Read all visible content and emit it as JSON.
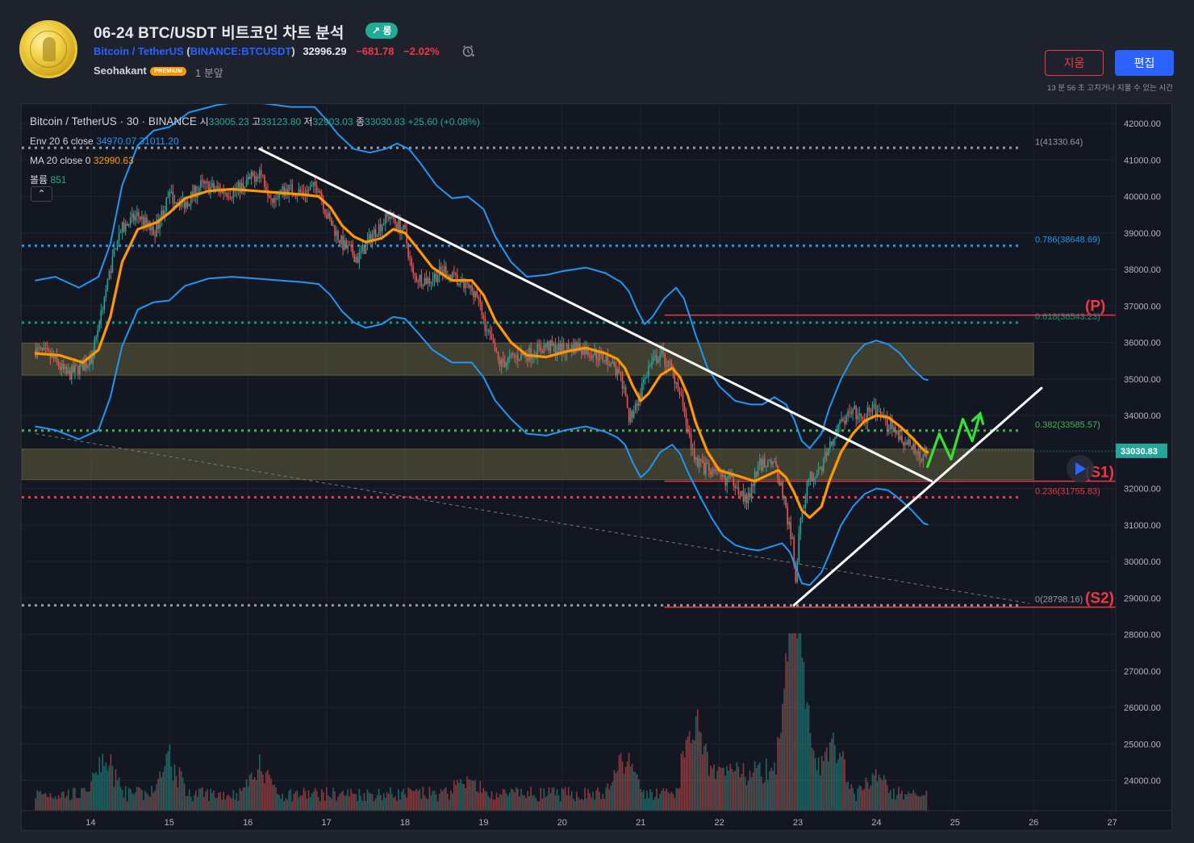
{
  "header": {
    "title": "06-24 BTC/USDT 비트코인 차트 분석",
    "badge": "↗ 롱",
    "symbol_name": "Bitcoin / TetherUS",
    "exchange_ticker": "BINANCE:BTCUSDT",
    "open_paren": "(",
    "close_paren": ")",
    "price": "32996.29",
    "change": "−681.78",
    "change_pct": "−2.02%",
    "author": "Seohakant",
    "author_badge": "PREMIUM",
    "time_ago": "1 분앞",
    "delete_label": "지움",
    "edit_label": "편집",
    "edit_note": "13 분 56 초 고치거나 지울 수 있는 시간"
  },
  "legend": {
    "symbol": "Bitcoin / TetherUS",
    "interval": "30",
    "exchange": "BINANCE",
    "open_label": "시",
    "open": "33005.23",
    "high_label": "고",
    "high": "33123.80",
    "low_label": "저",
    "low": "32903.03",
    "close_label": "종",
    "close": "33030.83",
    "change": "+25.60 (+0.08%)",
    "env_label": "Env 20 6 close",
    "env_upper": "34970.07",
    "env_lower": "31011.20",
    "ma_label": "MA 20 close 0",
    "ma_value": "32990.63",
    "vol_label": "볼륨",
    "vol_value": "851",
    "collapse": "⌃"
  },
  "colors": {
    "background": "#131722",
    "grid": "#1f2330",
    "up": "#26a69a",
    "down": "#ef5350",
    "env": "#2196f3",
    "ma": "#ff9800",
    "trendline": "#ffffff",
    "projection": "#36e230",
    "zone": "#5c5a3a",
    "level_red": "#f23645"
  },
  "chart_data": {
    "type": "candlestick",
    "symbol": "BTCUSDT",
    "interval": "30",
    "x_ticks": [
      "14",
      "15",
      "16",
      "17",
      "18",
      "19",
      "20",
      "21",
      "22",
      "23",
      "24",
      "25",
      "26",
      "27"
    ],
    "y_ticks": [
      "42000.00",
      "41000.00",
      "40000.00",
      "39000.00",
      "38000.00",
      "37000.00",
      "36000.00",
      "35000.00",
      "34000.00",
      "33000.00",
      "32000.00",
      "31000.00",
      "30000.00",
      "29000.00",
      "28000.00",
      "27000.00",
      "26000.00",
      "25000.00",
      "24000.00"
    ],
    "ylim": [
      23250,
      42350
    ],
    "last_price": "33030.83",
    "close_path": [
      [
        13.3,
        35800
      ],
      [
        13.5,
        35600
      ],
      [
        13.7,
        35100
      ],
      [
        14.0,
        35500
      ],
      [
        14.2,
        37500
      ],
      [
        14.35,
        39000
      ],
      [
        14.6,
        39500
      ],
      [
        14.8,
        39000
      ],
      [
        15.0,
        40000
      ],
      [
        15.2,
        39800
      ],
      [
        15.4,
        40300
      ],
      [
        15.6,
        40200
      ],
      [
        15.8,
        40100
      ],
      [
        16.0,
        40400
      ],
      [
        16.15,
        40700
      ],
      [
        16.3,
        40000
      ],
      [
        16.5,
        40200
      ],
      [
        16.7,
        40100
      ],
      [
        16.9,
        40300
      ],
      [
        17.0,
        39500
      ],
      [
        17.2,
        38700
      ],
      [
        17.4,
        38300
      ],
      [
        17.6,
        39000
      ],
      [
        17.8,
        39500
      ],
      [
        18.0,
        39000
      ],
      [
        18.1,
        37800
      ],
      [
        18.3,
        37700
      ],
      [
        18.5,
        38000
      ],
      [
        18.7,
        37600
      ],
      [
        18.9,
        37400
      ],
      [
        19.0,
        36600
      ],
      [
        19.2,
        35400
      ],
      [
        19.4,
        35600
      ],
      [
        19.6,
        35700
      ],
      [
        19.8,
        35900
      ],
      [
        20.0,
        35800
      ],
      [
        20.2,
        35900
      ],
      [
        20.4,
        35700
      ],
      [
        20.6,
        35500
      ],
      [
        20.75,
        35000
      ],
      [
        20.85,
        33900
      ],
      [
        21.0,
        34600
      ],
      [
        21.1,
        35300
      ],
      [
        21.25,
        35700
      ],
      [
        21.4,
        35200
      ],
      [
        21.5,
        34700
      ],
      [
        21.6,
        33500
      ],
      [
        21.7,
        32800
      ],
      [
        21.85,
        32500
      ],
      [
        22.0,
        32300
      ],
      [
        22.2,
        32200
      ],
      [
        22.35,
        31600
      ],
      [
        22.5,
        32600
      ],
      [
        22.65,
        32800
      ],
      [
        22.75,
        32400
      ],
      [
        22.85,
        31400
      ],
      [
        22.93,
        30500
      ],
      [
        22.97,
        29400
      ],
      [
        23.0,
        30400
      ],
      [
        23.05,
        31400
      ],
      [
        23.15,
        32300
      ],
      [
        23.3,
        32500
      ],
      [
        23.4,
        33200
      ],
      [
        23.55,
        33800
      ],
      [
        23.7,
        34100
      ],
      [
        23.85,
        33900
      ],
      [
        23.95,
        34300
      ],
      [
        24.05,
        33900
      ],
      [
        24.2,
        33700
      ],
      [
        24.35,
        33300
      ],
      [
        24.5,
        33000
      ],
      [
        24.6,
        32900
      ],
      [
        24.65,
        33030
      ]
    ],
    "moving_average": {
      "name": "MA 20 close 0",
      "points": [
        [
          13.3,
          35700
        ],
        [
          13.6,
          35650
        ],
        [
          13.9,
          35450
        ],
        [
          14.1,
          35800
        ],
        [
          14.25,
          36700
        ],
        [
          14.4,
          38200
        ],
        [
          14.6,
          39100
        ],
        [
          14.85,
          39300
        ],
        [
          15.0,
          39550
        ],
        [
          15.2,
          39950
        ],
        [
          15.5,
          40150
        ],
        [
          15.8,
          40200
        ],
        [
          16.1,
          40150
        ],
        [
          16.4,
          40100
        ],
        [
          16.7,
          40050
        ],
        [
          16.9,
          40000
        ],
        [
          17.05,
          39700
        ],
        [
          17.2,
          39200
        ],
        [
          17.35,
          38900
        ],
        [
          17.5,
          38750
        ],
        [
          17.7,
          38850
        ],
        [
          17.85,
          39100
        ],
        [
          18.0,
          39000
        ],
        [
          18.15,
          38600
        ],
        [
          18.35,
          38050
        ],
        [
          18.6,
          37700
        ],
        [
          18.85,
          37700
        ],
        [
          19.0,
          37300
        ],
        [
          19.15,
          36600
        ],
        [
          19.35,
          36000
        ],
        [
          19.55,
          35650
        ],
        [
          19.8,
          35600
        ],
        [
          20.05,
          35750
        ],
        [
          20.3,
          35850
        ],
        [
          20.55,
          35700
        ],
        [
          20.7,
          35550
        ],
        [
          20.8,
          35300
        ],
        [
          20.9,
          34800
        ],
        [
          21.0,
          34400
        ],
        [
          21.1,
          34600
        ],
        [
          21.25,
          35100
        ],
        [
          21.4,
          35300
        ],
        [
          21.5,
          35050
        ],
        [
          21.6,
          34550
        ],
        [
          21.7,
          33800
        ],
        [
          21.85,
          33000
        ],
        [
          22.0,
          32500
        ],
        [
          22.15,
          32400
        ],
        [
          22.3,
          32300
        ],
        [
          22.45,
          32200
        ],
        [
          22.6,
          32350
        ],
        [
          22.75,
          32500
        ],
        [
          22.85,
          32300
        ],
        [
          22.95,
          31900
        ],
        [
          23.05,
          31400
        ],
        [
          23.15,
          31200
        ],
        [
          23.3,
          31500
        ],
        [
          23.4,
          32200
        ],
        [
          23.55,
          33000
        ],
        [
          23.7,
          33500
        ],
        [
          23.85,
          33850
        ],
        [
          24.0,
          34000
        ],
        [
          24.15,
          33950
        ],
        [
          24.3,
          33700
        ],
        [
          24.45,
          33400
        ],
        [
          24.6,
          33050
        ],
        [
          24.65,
          32990
        ]
      ]
    },
    "envelope": {
      "name": "Env 20 6 close",
      "upper": [
        [
          13.3,
          37700
        ],
        [
          13.55,
          37800
        ],
        [
          13.85,
          37500
        ],
        [
          14.1,
          37800
        ],
        [
          14.25,
          38700
        ],
        [
          14.4,
          40300
        ],
        [
          14.6,
          41400
        ],
        [
          14.8,
          41800
        ],
        [
          15.0,
          41900
        ],
        [
          15.25,
          42300
        ],
        [
          15.6,
          42500
        ],
        [
          15.9,
          42600
        ],
        [
          16.2,
          42550
        ],
        [
          16.55,
          42450
        ],
        [
          16.85,
          42450
        ],
        [
          17.0,
          42100
        ],
        [
          17.15,
          41700
        ],
        [
          17.35,
          41300
        ],
        [
          17.55,
          41200
        ],
        [
          17.75,
          41300
        ],
        [
          17.9,
          41450
        ],
        [
          18.05,
          41300
        ],
        [
          18.2,
          40900
        ],
        [
          18.4,
          40300
        ],
        [
          18.6,
          39950
        ],
        [
          18.8,
          40000
        ],
        [
          19.0,
          39650
        ],
        [
          19.15,
          38900
        ],
        [
          19.35,
          38200
        ],
        [
          19.55,
          37800
        ],
        [
          19.8,
          37850
        ],
        [
          20.0,
          37950
        ],
        [
          20.3,
          38050
        ],
        [
          20.55,
          37900
        ],
        [
          20.75,
          37650
        ],
        [
          20.85,
          37400
        ],
        [
          20.95,
          36900
        ],
        [
          21.05,
          36500
        ],
        [
          21.15,
          36700
        ],
        [
          21.3,
          37200
        ],
        [
          21.45,
          37500
        ],
        [
          21.55,
          37200
        ],
        [
          21.7,
          36200
        ],
        [
          21.85,
          35300
        ],
        [
          22.0,
          34800
        ],
        [
          22.2,
          34400
        ],
        [
          22.4,
          34300
        ],
        [
          22.55,
          34300
        ],
        [
          22.7,
          34500
        ],
        [
          22.85,
          34300
        ],
        [
          22.95,
          33900
        ],
        [
          23.05,
          33300
        ],
        [
          23.15,
          33100
        ],
        [
          23.3,
          33500
        ],
        [
          23.4,
          34200
        ],
        [
          23.55,
          35000
        ],
        [
          23.7,
          35600
        ],
        [
          23.85,
          35950
        ],
        [
          24.0,
          36050
        ],
        [
          24.15,
          35950
        ],
        [
          24.3,
          35700
        ],
        [
          24.45,
          35300
        ],
        [
          24.6,
          35000
        ],
        [
          24.65,
          34970
        ]
      ],
      "lower": [
        [
          13.3,
          33700
        ],
        [
          13.55,
          33600
        ],
        [
          13.85,
          33350
        ],
        [
          14.1,
          33600
        ],
        [
          14.25,
          34500
        ],
        [
          14.4,
          35900
        ],
        [
          14.6,
          36900
        ],
        [
          14.8,
          37100
        ],
        [
          15.0,
          37150
        ],
        [
          15.2,
          37550
        ],
        [
          15.5,
          37750
        ],
        [
          15.8,
          37800
        ],
        [
          16.1,
          37750
        ],
        [
          16.4,
          37700
        ],
        [
          16.7,
          37650
        ],
        [
          16.9,
          37600
        ],
        [
          17.05,
          37300
        ],
        [
          17.2,
          36850
        ],
        [
          17.35,
          36550
        ],
        [
          17.5,
          36400
        ],
        [
          17.7,
          36500
        ],
        [
          17.85,
          36700
        ],
        [
          18.0,
          36650
        ],
        [
          18.15,
          36300
        ],
        [
          18.35,
          35800
        ],
        [
          18.6,
          35450
        ],
        [
          18.85,
          35450
        ],
        [
          19.0,
          35050
        ],
        [
          19.15,
          34400
        ],
        [
          19.35,
          33900
        ],
        [
          19.55,
          33500
        ],
        [
          19.8,
          33450
        ],
        [
          20.05,
          33600
        ],
        [
          20.3,
          33700
        ],
        [
          20.55,
          33550
        ],
        [
          20.7,
          33400
        ],
        [
          20.8,
          33200
        ],
        [
          20.9,
          32700
        ],
        [
          21.0,
          32300
        ],
        [
          21.1,
          32500
        ],
        [
          21.25,
          33000
        ],
        [
          21.4,
          33200
        ],
        [
          21.5,
          32950
        ],
        [
          21.6,
          32450
        ],
        [
          21.75,
          31800
        ],
        [
          21.9,
          31200
        ],
        [
          22.05,
          30700
        ],
        [
          22.2,
          30450
        ],
        [
          22.35,
          30350
        ],
        [
          22.5,
          30300
        ],
        [
          22.65,
          30400
        ],
        [
          22.8,
          30500
        ],
        [
          22.9,
          30250
        ],
        [
          22.98,
          29800
        ],
        [
          23.05,
          29400
        ],
        [
          23.15,
          29350
        ],
        [
          23.3,
          29700
        ],
        [
          23.4,
          30200
        ],
        [
          23.55,
          31000
        ],
        [
          23.7,
          31500
        ],
        [
          23.85,
          31850
        ],
        [
          24.0,
          32000
        ],
        [
          24.15,
          31950
        ],
        [
          24.3,
          31700
        ],
        [
          24.45,
          31400
        ],
        [
          24.6,
          31050
        ],
        [
          24.65,
          31011
        ]
      ]
    },
    "fib_levels": [
      {
        "label": "1(41330.64)",
        "value": 41330.64,
        "color": "#9598a1"
      },
      {
        "label": "0.786(38648.69)",
        "value": 38648.69,
        "color": "#2196f3"
      },
      {
        "label": "0.618(36543.23)",
        "value": 36543.23,
        "color": "#089981"
      },
      {
        "label": "0.382(33585.57)",
        "value": 33585.57,
        "color": "#4caf50"
      },
      {
        "label": "0.236(31755.83)",
        "value": 31755.83,
        "color": "#f23645"
      },
      {
        "label": "0(28798.16)",
        "value": 28798.16,
        "color": "#9598a1"
      }
    ],
    "zones": [
      {
        "from": 35100,
        "to": 35980
      },
      {
        "from": 32240,
        "to": 33080
      }
    ],
    "levels": [
      {
        "label": "(P)",
        "value": 36750
      },
      {
        "label": "(S1)",
        "value": 32200
      },
      {
        "label": "(S2)",
        "value": 28750
      }
    ],
    "trendlines": [
      {
        "from": [
          16.15,
          41300
        ],
        "to": [
          24.7,
          32200
        ]
      },
      {
        "from": [
          22.95,
          28800
        ],
        "to": [
          26.1,
          34750
        ]
      }
    ],
    "guide_line": {
      "from": [
        13.3,
        33500
      ],
      "to": [
        25.95,
        28850
      ]
    },
    "projection": [
      [
        24.65,
        32600
      ],
      [
        24.8,
        33500
      ],
      [
        24.95,
        32800
      ],
      [
        25.1,
        33900
      ],
      [
        25.22,
        33300
      ],
      [
        25.32,
        34050
      ]
    ],
    "volume": {
      "max": 4800,
      "spikes": [
        [
          14.2,
          1850
        ],
        [
          15.0,
          2100
        ],
        [
          16.15,
          1550
        ],
        [
          18.8,
          1250
        ],
        [
          20.8,
          2000
        ],
        [
          21.7,
          2500
        ],
        [
          22.95,
          4800
        ],
        [
          23.0,
          3600
        ],
        [
          23.45,
          1700
        ],
        [
          24.0,
          1350
        ]
      ]
    }
  }
}
